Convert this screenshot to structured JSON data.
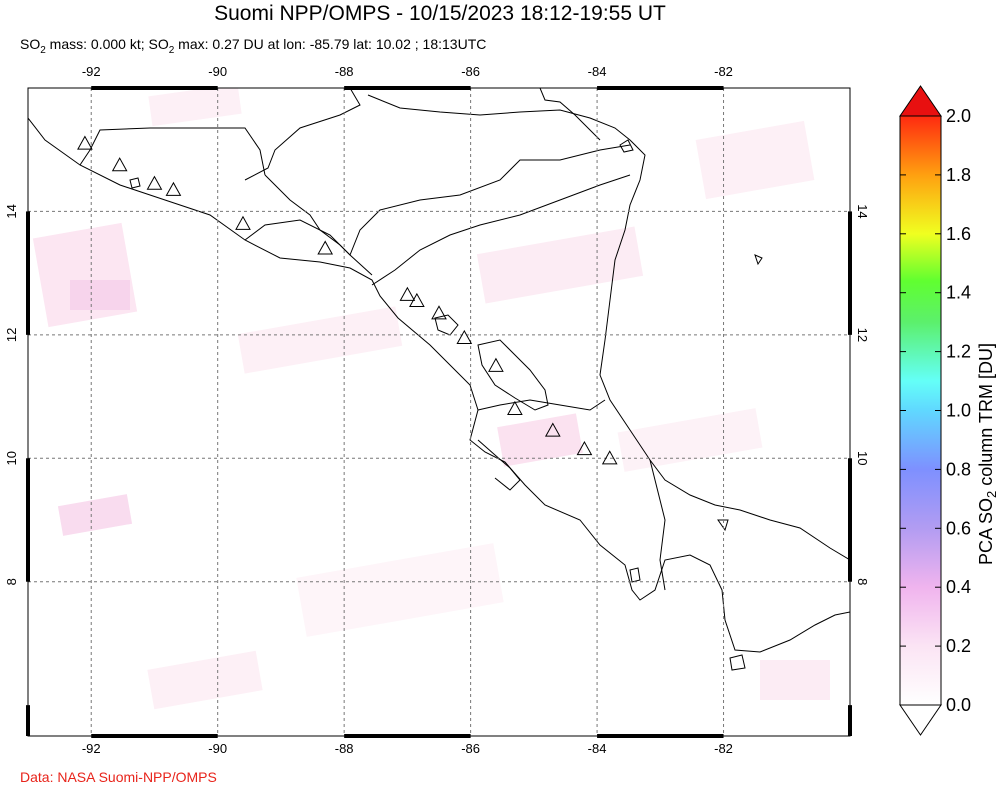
{
  "title": "Suomi NPP/OMPS - 10/15/2023 18:12-19:55 UT",
  "subtitle": {
    "p1": "SO",
    "p2": " mass: 0.000 kt; SO",
    "p3": " max: 0.27 DU at lon: -85.79 lat: 10.02 ; 18:13UTC",
    "sub": "2"
  },
  "credit": "Data: NASA Suomi-NPP/OMPS",
  "map": {
    "lon_range": [
      -93,
      -80
    ],
    "lat_range": [
      5.5,
      16
    ],
    "lon_ticks": [
      {
        "value": -92,
        "label": "-92"
      },
      {
        "value": -90,
        "label": "-90"
      },
      {
        "value": -88,
        "label": "-88"
      },
      {
        "value": -86,
        "label": "-86"
      },
      {
        "value": -84,
        "label": "-84"
      },
      {
        "value": -82,
        "label": "-82"
      }
    ],
    "lat_ticks": [
      {
        "value": 14,
        "label": "14"
      },
      {
        "value": 12,
        "label": "12"
      },
      {
        "value": 10,
        "label": "10"
      },
      {
        "value": 8,
        "label": "8"
      }
    ],
    "volcanoes": [
      {
        "lon": -92.1,
        "lat": 15.1
      },
      {
        "lon": -91.55,
        "lat": 14.75
      },
      {
        "lon": -91.0,
        "lat": 14.45
      },
      {
        "lon": -90.7,
        "lat": 14.35
      },
      {
        "lon": -89.6,
        "lat": 13.8
      },
      {
        "lon": -88.3,
        "lat": 13.4
      },
      {
        "lon": -87.0,
        "lat": 12.65
      },
      {
        "lon": -86.85,
        "lat": 12.55
      },
      {
        "lon": -86.5,
        "lat": 12.35
      },
      {
        "lon": -86.1,
        "lat": 11.95
      },
      {
        "lon": -85.6,
        "lat": 11.5
      },
      {
        "lon": -85.3,
        "lat": 10.8
      },
      {
        "lon": -84.7,
        "lat": 10.45
      },
      {
        "lon": -84.2,
        "lat": 10.15
      },
      {
        "lon": -83.8,
        "lat": 10.0
      }
    ]
  },
  "colorbar": {
    "label_p1": "PCA SO",
    "label_sub": "2",
    "label_p2": " column TRM [DU]",
    "ticks": [
      "2.0",
      "1.8",
      "1.6",
      "1.4",
      "1.2",
      "1.0",
      "0.8",
      "0.6",
      "0.4",
      "0.2",
      "0.0"
    ],
    "colors": [
      "#ffffff",
      "#f8c8f0",
      "#b89cf0",
      "#7d8cff",
      "#64ffff",
      "#60ff60",
      "#f0ff30",
      "#ffa010",
      "#ff3010",
      "#e81010"
    ]
  }
}
